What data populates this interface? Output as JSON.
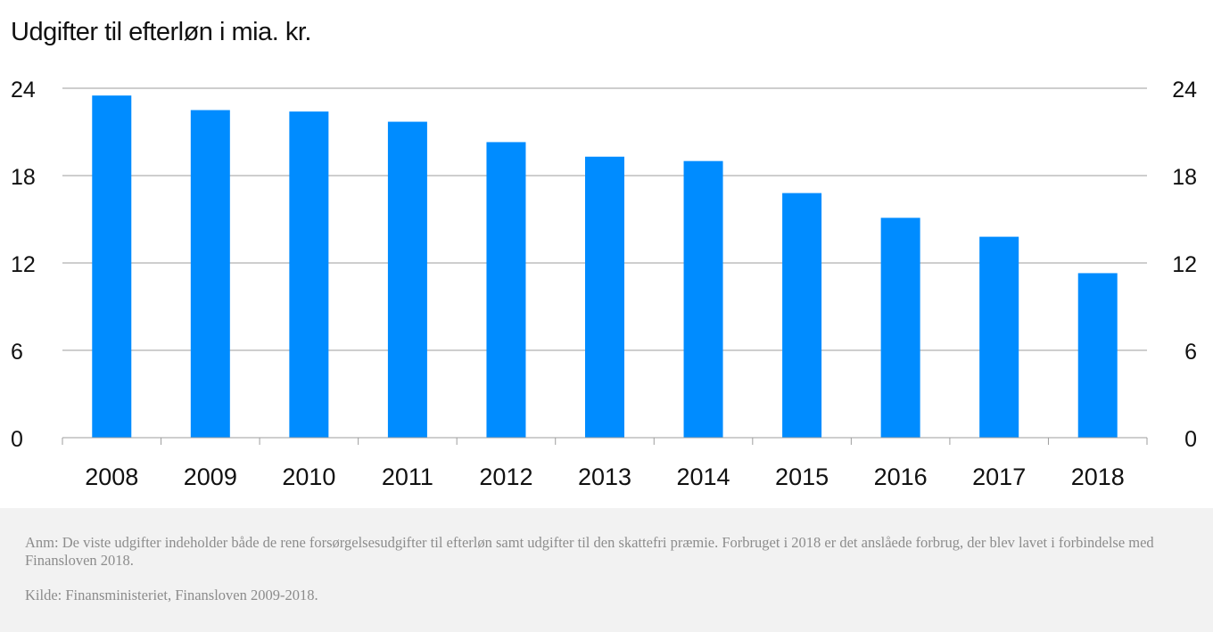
{
  "chart_data": {
    "type": "bar",
    "title": "Udgifter til efterløn i mia. kr.",
    "categories": [
      "2008",
      "2009",
      "2010",
      "2011",
      "2012",
      "2013",
      "2014",
      "2015",
      "2016",
      "2017",
      "2018"
    ],
    "values": [
      23.5,
      22.5,
      22.4,
      21.7,
      20.3,
      19.3,
      19.0,
      16.8,
      15.1,
      13.8,
      11.3
    ],
    "ylim": [
      0,
      24
    ],
    "yticks": [
      "0",
      "6",
      "12",
      "18",
      "24"
    ],
    "bar_color": "#008cff",
    "grid": true,
    "right_axis": true
  },
  "footer": {
    "note": "Anm: De viste udgifter indeholder både de rene forsørgelsesudgifter til efterløn samt udgifter til den skattefri præmie. Forbruget i 2018 er det anslåede forbrug, der blev lavet i forbindelse med Finansloven 2018.",
    "source": "Kilde: Finansministeriet, Finansloven 2009-2018."
  }
}
